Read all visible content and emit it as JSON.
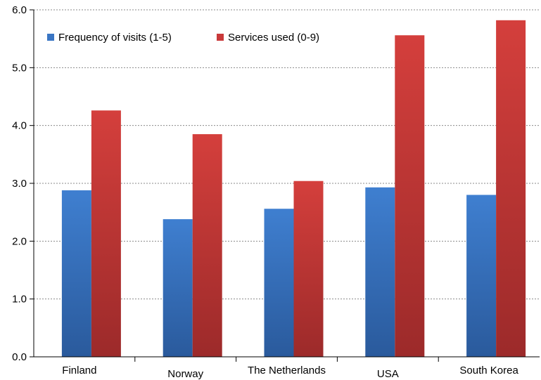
{
  "chart_data": {
    "type": "bar",
    "categories": [
      "Finland",
      "Norway",
      "The Netherlands",
      "USA",
      "South Korea"
    ],
    "series": [
      {
        "name": "Frequency of visits (1-5)",
        "color": "#3a76c4",
        "values": [
          2.88,
          2.38,
          2.56,
          2.93,
          2.8
        ]
      },
      {
        "name": "Services used (0-9)",
        "color": "#c9393a",
        "values": [
          4.26,
          3.85,
          3.04,
          5.56,
          5.82
        ]
      }
    ],
    "yticks": [
      "0.0",
      "1.0",
      "2.0",
      "3.0",
      "4.0",
      "5.0",
      "6.0"
    ],
    "ylim": [
      0,
      6
    ],
    "grid": true,
    "legend_position": "top-left"
  }
}
